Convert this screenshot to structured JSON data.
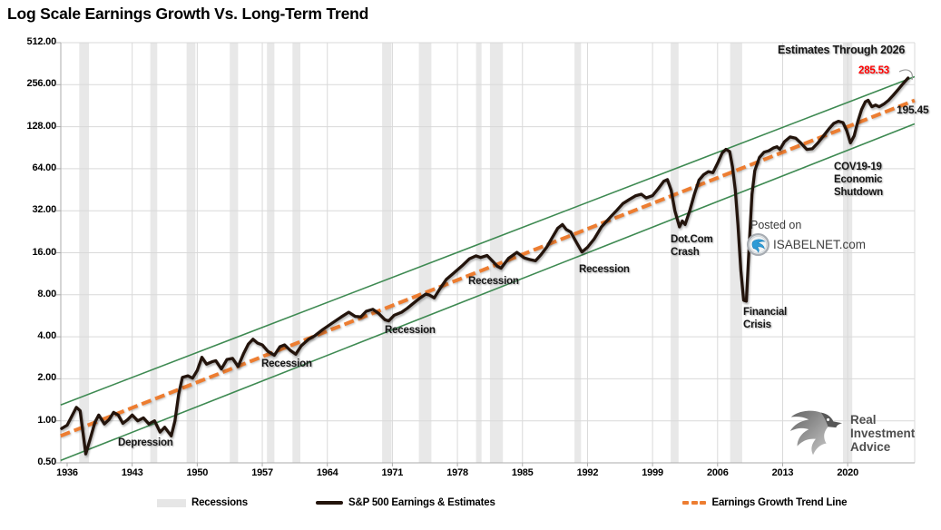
{
  "title": "Log Scale Earnings Growth Vs. Long-Term Trend",
  "watermark": {
    "posted_on": "Posted on",
    "site": "ISABELNET.com"
  },
  "ria_logo": {
    "line1": "Real",
    "line2": "Investment",
    "line3": "Advice"
  },
  "legend": [
    {
      "label": "Recessions"
    },
    {
      "label": "S&P 500 Earnings & Estimates"
    },
    {
      "label": "Earnings Growth Trend Line"
    }
  ],
  "chart_data": {
    "type": "line",
    "title": "Log Scale Earnings Growth Vs. Long-Term Trend",
    "log_scale": true,
    "grid": true,
    "x_axis": {
      "ticks": [
        "1936",
        "1943",
        "1950",
        "1957",
        "1964",
        "1971",
        "1978",
        "1985",
        "1992",
        "1999",
        "2006",
        "2013",
        "2020"
      ]
    },
    "y_axis": {
      "ticks": [
        {
          "label": "512.00",
          "value": 512
        },
        {
          "label": "256.00",
          "value": 256
        },
        {
          "label": "128.00",
          "value": 128
        },
        {
          "label": "64.00",
          "value": 64
        },
        {
          "label": "32.00",
          "value": 32
        },
        {
          "label": "16.00",
          "value": 16
        },
        {
          "label": "8.00",
          "value": 8
        },
        {
          "label": "4.00",
          "value": 4
        },
        {
          "label": "2.00",
          "value": 2
        },
        {
          "label": "1.00",
          "value": 1
        },
        {
          "label": "0.50",
          "value": 0.5
        }
      ]
    },
    "colors": {
      "earnings": "#23140C",
      "trend": "#ED7D31",
      "channel": "#3E8A52",
      "recession": "#E8E8E8",
      "grid": "#D9D9D9",
      "axis": "#ABABAB",
      "estimate_label": "#FF0000"
    },
    "recessions": [
      [
        1937.3,
        1938.35
      ],
      [
        1944.95,
        1945.7
      ],
      [
        1948.85,
        1949.8
      ],
      [
        1953.5,
        1954.4
      ],
      [
        1957.5,
        1958.3
      ],
      [
        1960.25,
        1961.1
      ],
      [
        1969.9,
        1970.9
      ],
      [
        1973.85,
        1975.2
      ],
      [
        1980.0,
        1980.6
      ],
      [
        1981.5,
        1982.9
      ],
      [
        1990.6,
        1991.3
      ],
      [
        2000.95,
        2001.8
      ],
      [
        2007.35,
        2008.65
      ],
      [
        2019.5,
        2020.5
      ]
    ],
    "trend_line": {
      "name": "Earnings Growth Trend Line",
      "end_value_label": "195.45",
      "points": [
        [
          1935.3,
          0.78
        ],
        [
          2027.2,
          197.5
        ]
      ]
    },
    "channel_upper": {
      "points": [
        [
          1935.3,
          1.3
        ],
        [
          2027.2,
          292
        ]
      ]
    },
    "channel_lower": {
      "points": [
        [
          1935.3,
          0.52
        ],
        [
          2027.2,
          134
        ]
      ]
    },
    "series": [
      {
        "name": "S&P 500 Earnings & Estimates",
        "end_value_label": "285.53",
        "points": [
          [
            1935.4,
            0.88
          ],
          [
            1936,
            0.93
          ],
          [
            1936.5,
            1.08
          ],
          [
            1937,
            1.25
          ],
          [
            1937.4,
            1.18
          ],
          [
            1938,
            0.58
          ],
          [
            1938.5,
            0.75
          ],
          [
            1939,
            0.98
          ],
          [
            1939.4,
            1.1
          ],
          [
            1940,
            0.95
          ],
          [
            1940.5,
            1.02
          ],
          [
            1941,
            1.15
          ],
          [
            1941.5,
            1.1
          ],
          [
            1942,
            0.96
          ],
          [
            1942.5,
            1.02
          ],
          [
            1943,
            1.1
          ],
          [
            1943.6,
            1.0
          ],
          [
            1944.2,
            1.05
          ],
          [
            1944.8,
            0.95
          ],
          [
            1945.4,
            1.0
          ],
          [
            1946,
            0.83
          ],
          [
            1946.5,
            0.9
          ],
          [
            1947.2,
            0.78
          ],
          [
            1947.6,
            1.0
          ],
          [
            1948,
            1.55
          ],
          [
            1948.4,
            2.05
          ],
          [
            1949,
            2.1
          ],
          [
            1949.5,
            2.02
          ],
          [
            1950,
            2.3
          ],
          [
            1950.5,
            2.85
          ],
          [
            1951,
            2.55
          ],
          [
            1951.6,
            2.65
          ],
          [
            1952,
            2.7
          ],
          [
            1952.6,
            2.35
          ],
          [
            1953.2,
            2.75
          ],
          [
            1953.8,
            2.8
          ],
          [
            1954.4,
            2.45
          ],
          [
            1955,
            3.05
          ],
          [
            1955.5,
            3.55
          ],
          [
            1956,
            3.85
          ],
          [
            1956.5,
            3.6
          ],
          [
            1957,
            3.5
          ],
          [
            1957.6,
            3.15
          ],
          [
            1958.3,
            2.95
          ],
          [
            1958.9,
            3.4
          ],
          [
            1959.4,
            3.5
          ],
          [
            1960,
            3.2
          ],
          [
            1960.6,
            3.0
          ],
          [
            1961.2,
            3.45
          ],
          [
            1962,
            3.85
          ],
          [
            1962.6,
            4.05
          ],
          [
            1963.5,
            4.5
          ],
          [
            1964.5,
            5.0
          ],
          [
            1965.5,
            5.55
          ],
          [
            1966.3,
            6.0
          ],
          [
            1967,
            5.6
          ],
          [
            1967.6,
            5.55
          ],
          [
            1968.2,
            6.1
          ],
          [
            1968.9,
            6.3
          ],
          [
            1969.5,
            5.9
          ],
          [
            1970.2,
            5.3
          ],
          [
            1970.6,
            5.2
          ],
          [
            1971.2,
            5.7
          ],
          [
            1972,
            6.0
          ],
          [
            1972.6,
            6.4
          ],
          [
            1973.2,
            6.9
          ],
          [
            1974,
            7.6
          ],
          [
            1974.6,
            8.1
          ],
          [
            1975,
            7.95
          ],
          [
            1975.5,
            7.6
          ],
          [
            1976.2,
            9.0
          ],
          [
            1976.8,
            10.3
          ],
          [
            1977.5,
            11.3
          ],
          [
            1978.5,
            12.9
          ],
          [
            1979.3,
            14.5
          ],
          [
            1980,
            15.2
          ],
          [
            1980.5,
            14.8
          ],
          [
            1981.2,
            15.3
          ],
          [
            1981.8,
            13.9
          ],
          [
            1982.3,
            12.8
          ],
          [
            1982.7,
            12.4
          ],
          [
            1983.5,
            14.6
          ],
          [
            1984.4,
            16.1
          ],
          [
            1985.2,
            14.7
          ],
          [
            1985.8,
            14.3
          ],
          [
            1986.4,
            14.0
          ],
          [
            1987,
            15.5
          ],
          [
            1987.6,
            17.5
          ],
          [
            1988.2,
            20.5
          ],
          [
            1988.8,
            24.0
          ],
          [
            1989.3,
            25.5
          ],
          [
            1989.7,
            23.5
          ],
          [
            1990.2,
            22.5
          ],
          [
            1990.8,
            19.0
          ],
          [
            1991.4,
            16.2
          ],
          [
            1992,
            17.5
          ],
          [
            1992.7,
            20.0
          ],
          [
            1993.5,
            24.5
          ],
          [
            1994.5,
            29.0
          ],
          [
            1995.2,
            32.5
          ],
          [
            1995.8,
            36.0
          ],
          [
            1996.5,
            38.5
          ],
          [
            1997.2,
            41.0
          ],
          [
            1997.8,
            42.0
          ],
          [
            1998.3,
            39.5
          ],
          [
            1999,
            41.0
          ],
          [
            1999.6,
            46.0
          ],
          [
            2000.2,
            52.0
          ],
          [
            2000.6,
            53.5
          ],
          [
            2001,
            45.0
          ],
          [
            2001.4,
            32.0
          ],
          [
            2001.9,
            24.5
          ],
          [
            2002.2,
            27.0
          ],
          [
            2002.5,
            25.5
          ],
          [
            2003,
            32.0
          ],
          [
            2003.5,
            42.0
          ],
          [
            2004,
            53.0
          ],
          [
            2004.5,
            58.0
          ],
          [
            2005,
            61.0
          ],
          [
            2005.5,
            60.0
          ],
          [
            2006,
            70.0
          ],
          [
            2006.5,
            83.0
          ],
          [
            2006.9,
            88.0
          ],
          [
            2007.3,
            85.0
          ],
          [
            2007.6,
            66.0
          ],
          [
            2007.9,
            45.0
          ],
          [
            2008.2,
            25.0
          ],
          [
            2008.5,
            12.0
          ],
          [
            2008.8,
            7.3
          ],
          [
            2009.1,
            7.2
          ],
          [
            2009.4,
            18.0
          ],
          [
            2009.7,
            42.0
          ],
          [
            2010,
            62.0
          ],
          [
            2010.5,
            77.0
          ],
          [
            2011,
            84.0
          ],
          [
            2011.5,
            86.0
          ],
          [
            2012,
            90.0
          ],
          [
            2012.4,
            92.0
          ],
          [
            2012.7,
            88.0
          ],
          [
            2013.2,
            100.0
          ],
          [
            2013.8,
            108.0
          ],
          [
            2014.4,
            106.0
          ],
          [
            2015,
            97.0
          ],
          [
            2015.6,
            88.0
          ],
          [
            2016.2,
            89.0
          ],
          [
            2016.8,
            98.0
          ],
          [
            2017.4,
            110.0
          ],
          [
            2018,
            124.0
          ],
          [
            2018.5,
            135.0
          ],
          [
            2019,
            140.0
          ],
          [
            2019.5,
            137.0
          ],
          [
            2019.9,
            120.0
          ],
          [
            2020.3,
            98.0
          ],
          [
            2020.7,
            110.0
          ],
          [
            2021.1,
            140.0
          ],
          [
            2021.5,
            170.0
          ],
          [
            2021.9,
            193.0
          ],
          [
            2022.2,
            198.0
          ],
          [
            2022.6,
            178.0
          ],
          [
            2023,
            183.0
          ],
          [
            2023.4,
            178.0
          ],
          [
            2023.9,
            186.0
          ],
          [
            2024.4,
            198.0
          ],
          [
            2024.9,
            215.0
          ],
          [
            2025.4,
            235.0
          ],
          [
            2025.9,
            258.0
          ],
          [
            2026.5,
            285.53
          ]
        ]
      }
    ],
    "annotations": [
      {
        "text": "Depression",
        "x": 130,
        "y": 481
      },
      {
        "text": "Recession",
        "x": 288,
        "y": 394
      },
      {
        "text": "Recession",
        "x": 424,
        "y": 357
      },
      {
        "text": "Recession",
        "x": 516,
        "y": 303
      },
      {
        "text": "Recession",
        "x": 638,
        "y": 290
      },
      {
        "text": "Dot.Com\nCrash",
        "x": 739,
        "y": 257
      },
      {
        "text": "Financial\nCrisis",
        "x": 819,
        "y": 337
      },
      {
        "text": "COV19-19\nEconomic\nShutdown",
        "x": 919,
        "y": 177
      },
      {
        "text": "Estimates Through 2026",
        "x": 857,
        "y": 48,
        "size": 12.5
      },
      {
        "text": "285.53",
        "x": 946,
        "y": 71,
        "color": "#FF0000"
      },
      {
        "text": "195.45",
        "x": 988,
        "y": 114,
        "size": 12
      }
    ]
  }
}
